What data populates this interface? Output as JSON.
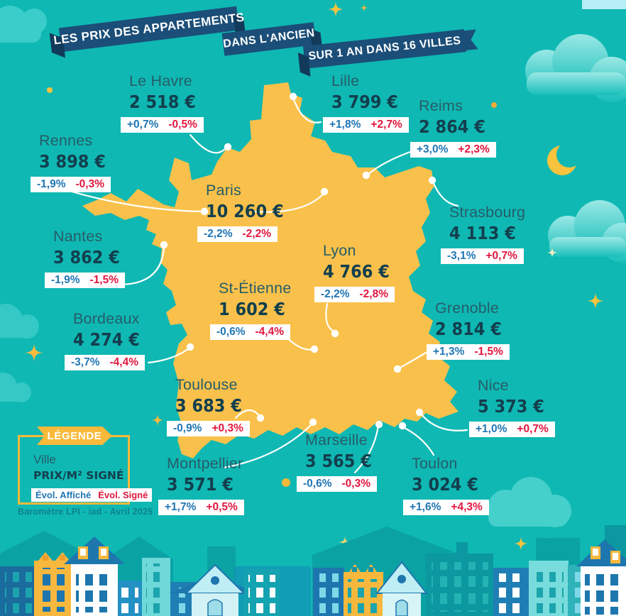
{
  "title": {
    "banner1": "LES PRIX DES APPARTEMENTS",
    "banner2": "DANS L'ANCIEN",
    "banner3": "SUR 1 AN DANS 16 VILLES"
  },
  "legend": {
    "header": "LÉGENDE",
    "city_label": "Ville",
    "price_label": "PRIX/M² SIGNÉ",
    "evol_affiche_label": "Évol. Affiché",
    "evol_signe_label": "Évol. Signé"
  },
  "source": "Baromètre LPI - iad - Avril 2025",
  "colors": {
    "background": "#0fb8b3",
    "map": "#f9c14b",
    "banner": "#1b4e78",
    "city_name": "#265d68",
    "price": "#133f4e",
    "evol_affiche": "#2076b4",
    "evol_signe": "#e0173e",
    "legend_border": "#f9b93b"
  },
  "chart_data": {
    "type": "map",
    "region": "France",
    "title": "LES PRIX DES APPARTEMENTS DANS L'ANCIEN SUR 1 AN DANS 16 VILLES",
    "unit": "€/m² signé",
    "value_labels": [
      "Évol. Affiché",
      "Évol. Signé"
    ],
    "cities": [
      {
        "name": "Lille",
        "price": "3 799 €",
        "evol_affiche": "+1,8%",
        "evol_signe": "+2,7%"
      },
      {
        "name": "Le Havre",
        "price": "2 518 €",
        "evol_affiche": "+0,7%",
        "evol_signe": "-0,5%"
      },
      {
        "name": "Reims",
        "price": "2 864 €",
        "evol_affiche": "+3,0%",
        "evol_signe": "+2,3%"
      },
      {
        "name": "Rennes",
        "price": "3 898 €",
        "evol_affiche": "-1,9%",
        "evol_signe": "-0,3%"
      },
      {
        "name": "Paris",
        "price": "10 260 €",
        "evol_affiche": "-2,2%",
        "evol_signe": "-2,2%"
      },
      {
        "name": "Strasbourg",
        "price": "4 113 €",
        "evol_affiche": "-3,1%",
        "evol_signe": "+0,7%"
      },
      {
        "name": "Nantes",
        "price": "3 862 €",
        "evol_affiche": "-1,9%",
        "evol_signe": "-1,5%"
      },
      {
        "name": "Lyon",
        "price": "4 766 €",
        "evol_affiche": "-2,2%",
        "evol_signe": "-2,8%"
      },
      {
        "name": "St-Étienne",
        "price": "1 602 €",
        "evol_affiche": "-0,6%",
        "evol_signe": "-4,4%"
      },
      {
        "name": "Grenoble",
        "price": "2 814 €",
        "evol_affiche": "+1,3%",
        "evol_signe": "-1,5%"
      },
      {
        "name": "Bordeaux",
        "price": "4 274 €",
        "evol_affiche": "-3,7%",
        "evol_signe": "-4,4%"
      },
      {
        "name": "Toulouse",
        "price": "3 683 €",
        "evol_affiche": "-0,9%",
        "evol_signe": "+0,3%"
      },
      {
        "name": "Nice",
        "price": "5 373 €",
        "evol_affiche": "+1,0%",
        "evol_signe": "+0,7%"
      },
      {
        "name": "Montpellier",
        "price": "3 571 €",
        "evol_affiche": "+1,7%",
        "evol_signe": "+0,5%"
      },
      {
        "name": "Marseille",
        "price": "3 565 €",
        "evol_affiche": "-0,6%",
        "evol_signe": "-0,3%"
      },
      {
        "name": "Toulon",
        "price": "3 024 €",
        "evol_affiche": "+1,6%",
        "evol_signe": "+4,3%"
      }
    ]
  }
}
